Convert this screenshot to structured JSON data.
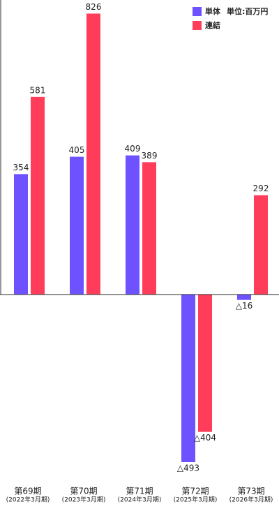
{
  "chart_data": {
    "type": "bar",
    "categories": [
      "第69期",
      "第70期",
      "第71期",
      "第72期",
      "第73期"
    ],
    "category_sublabels": [
      "(2022年3月期)",
      "(2023年3月期)",
      "(2024年3月期)",
      "(2025年3月期)",
      "(2026年3月期)"
    ],
    "unit_label": "単位:百万円",
    "series": [
      {
        "name": "単体",
        "color": "#6f52ff",
        "values": [
          354,
          405,
          409,
          -493,
          -16
        ],
        "value_labels": [
          "354",
          "405",
          "409",
          "△493",
          "△16"
        ]
      },
      {
        "name": "連結",
        "color": "#ff3d5a",
        "values": [
          581,
          826,
          389,
          -404,
          292
        ],
        "value_labels": [
          "581",
          "826",
          "389",
          "△404",
          "292"
        ]
      }
    ],
    "ylim": [
      -530,
      866
    ]
  }
}
